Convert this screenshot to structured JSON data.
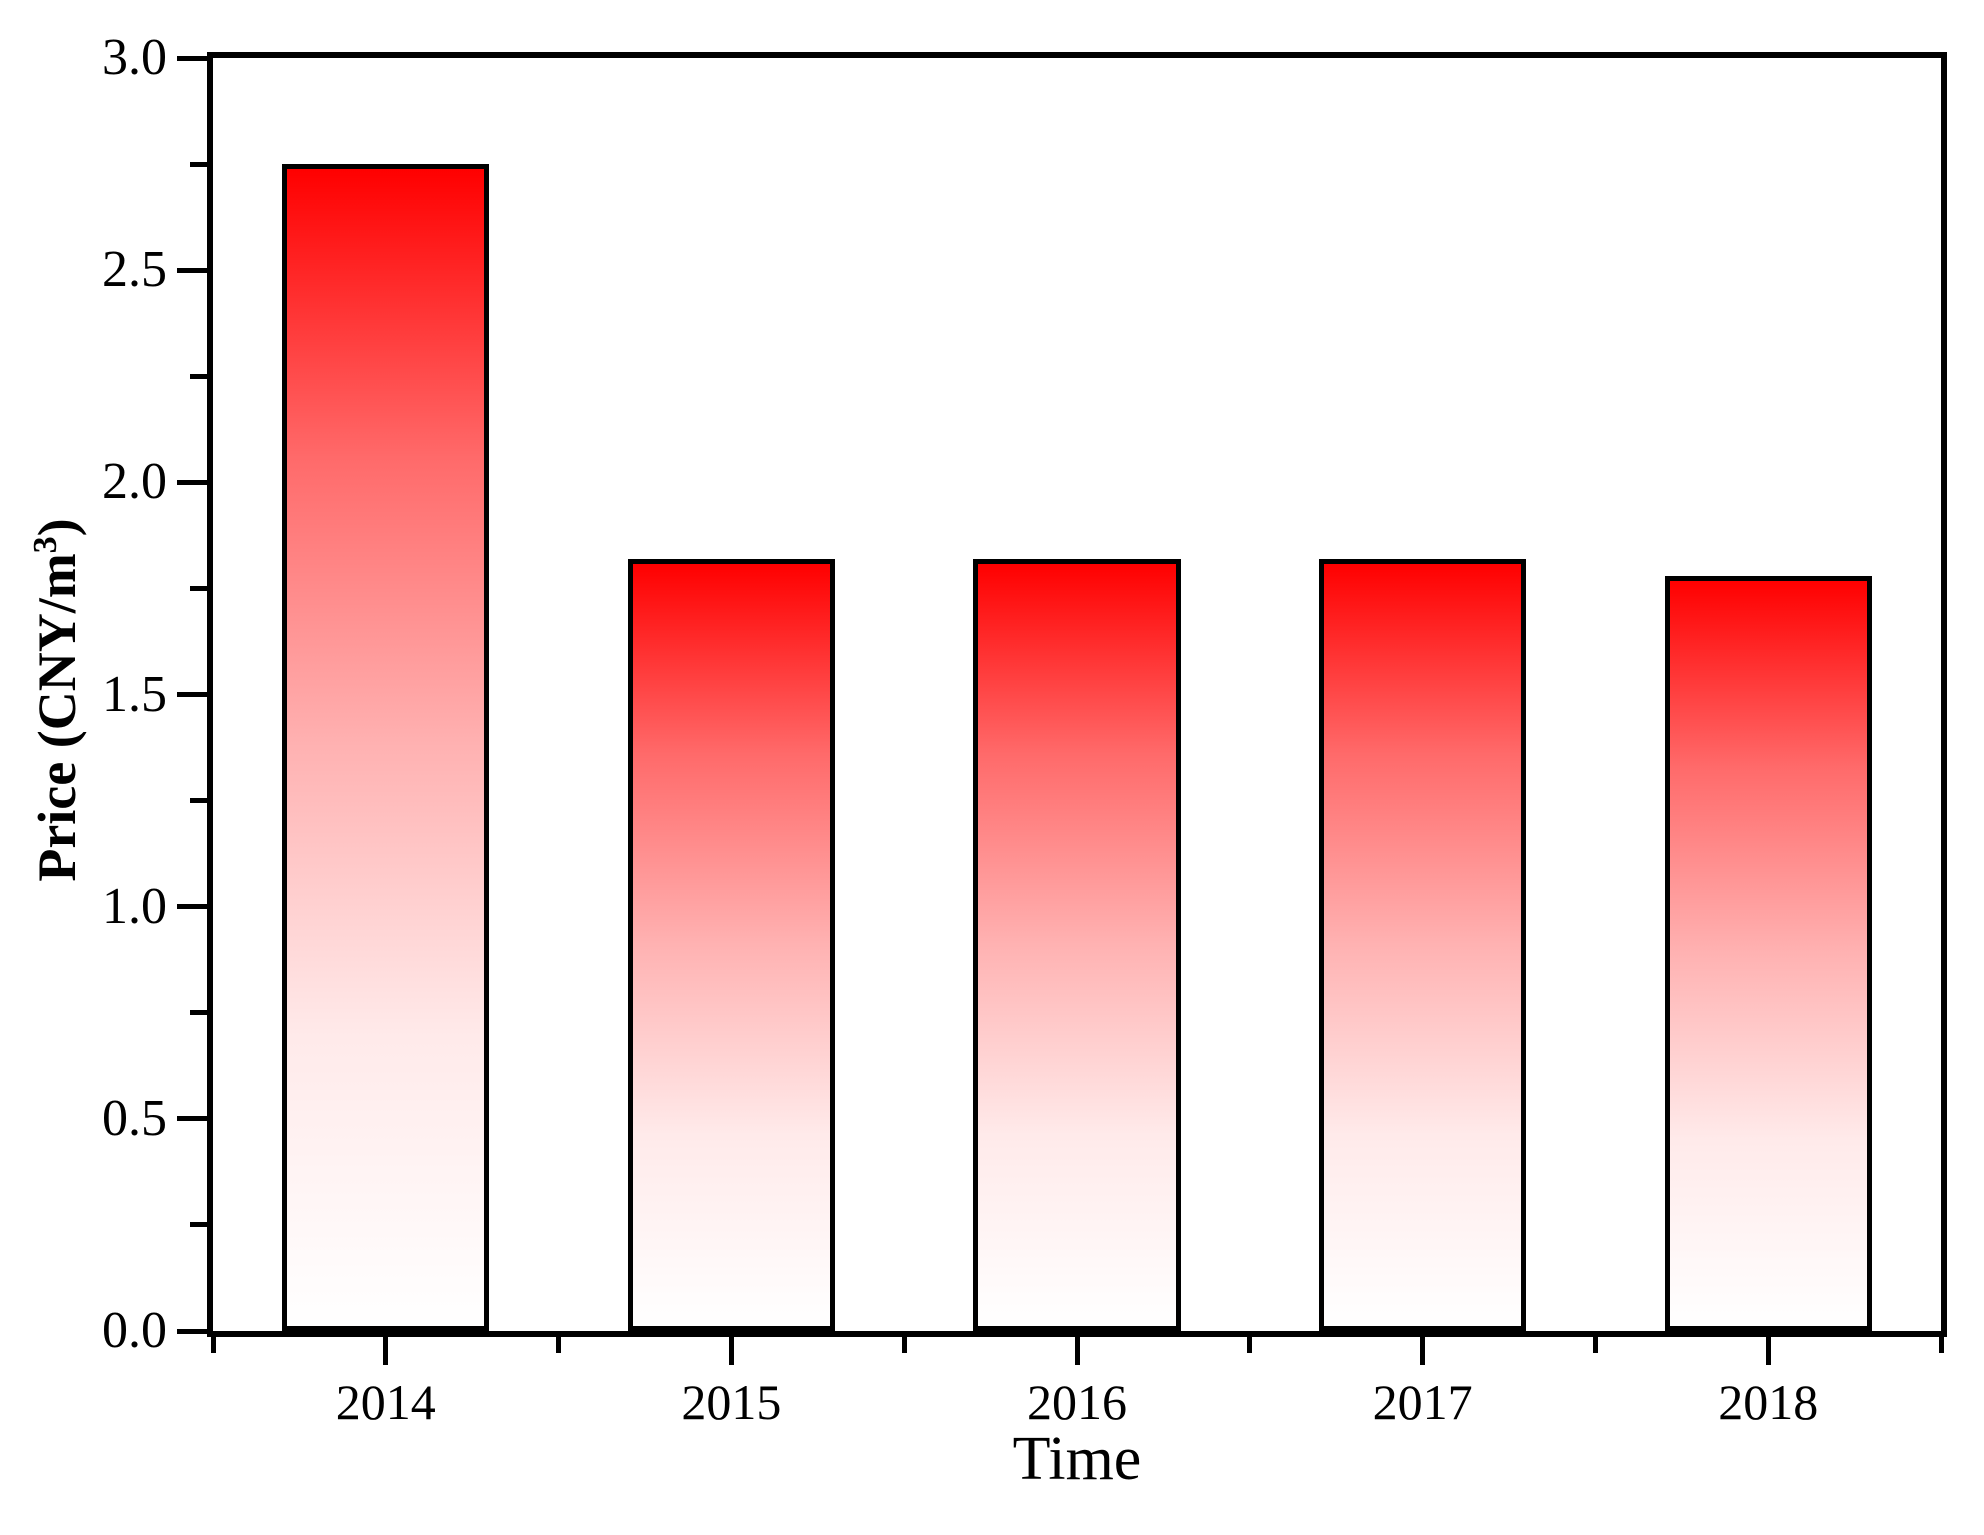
{
  "figure": {
    "background": "#ffffff",
    "axis_color": "#000000"
  },
  "chart_data": {
    "type": "bar",
    "title": "",
    "xlabel": "Time",
    "ylabel_prefix": "Price (CNY/m",
    "ylabel_sup": "3",
    "ylabel_suffix": ")",
    "categories": [
      "2014",
      "2015",
      "2016",
      "2017",
      "2018"
    ],
    "x_numeric": [
      2014,
      2015,
      2016,
      2017,
      2018
    ],
    "values": [
      2.75,
      1.82,
      1.82,
      1.82,
      1.78
    ],
    "xlim": [
      2013.5,
      2018.5
    ],
    "ylim": [
      0.0,
      3.0
    ],
    "bar_width_data_units": 0.6,
    "y_tick_values": [
      0.0,
      0.5,
      1.0,
      1.5,
      2.0,
      2.5,
      3.0
    ],
    "y_tick_labels": [
      "0.0",
      "0.5",
      "1.0",
      "1.5",
      "2.0",
      "2.5",
      "3.0"
    ],
    "y_minor_ticks": [
      0.25,
      0.75,
      1.25,
      1.75,
      2.25,
      2.75
    ],
    "x_minor_ticks": [
      2013.5,
      2014.5,
      2015.5,
      2016.5,
      2017.5,
      2018.5
    ],
    "grid": false,
    "legend": null,
    "bar_fill_top": "#ff0000",
    "bar_fill_bottom": "#ffffff",
    "bar_border_color": "#000000"
  }
}
